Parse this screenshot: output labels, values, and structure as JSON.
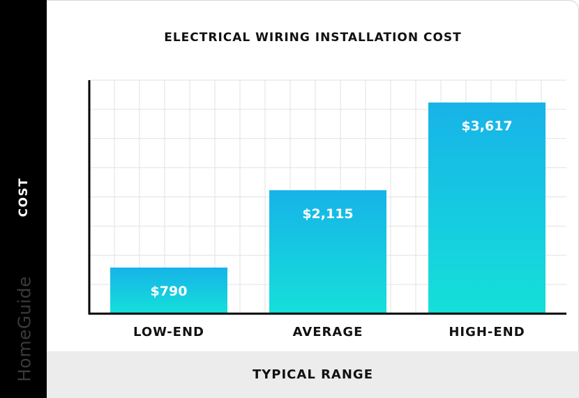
{
  "chart_data": {
    "type": "bar",
    "title": "ELECTRICAL WIRING INSTALLATION COST",
    "xlabel": "TYPICAL RANGE",
    "ylabel": "COST",
    "categories": [
      "LOW-END",
      "AVERAGE",
      "HIGH-END"
    ],
    "values": [
      790,
      2115,
      3617
    ],
    "value_labels": [
      "$790",
      "$2,115",
      "$3,617"
    ],
    "ylim": [
      0,
      4000
    ],
    "grid": true,
    "colors": {
      "bar_top": "#17b3e8",
      "bar_bottom": "#15e0d9",
      "axis": "#000000",
      "grid": "#e2e2e2"
    }
  },
  "brand": "HomeGuide"
}
